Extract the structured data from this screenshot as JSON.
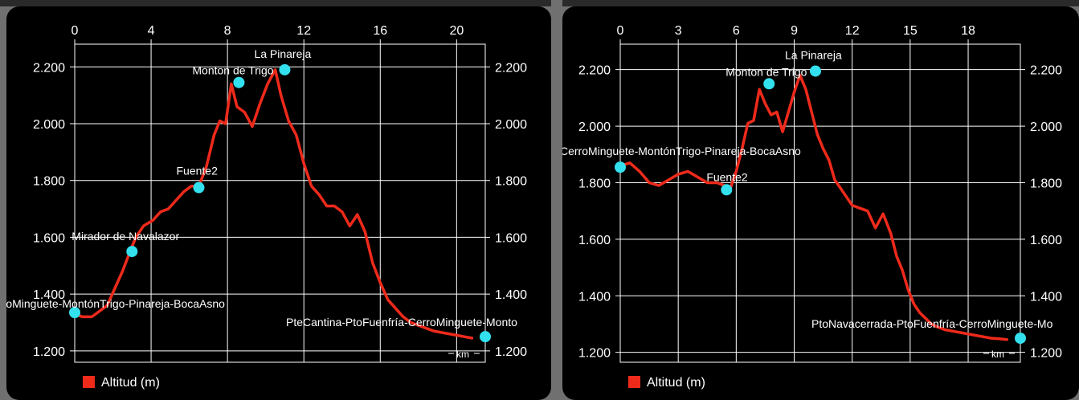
{
  "chart_data": [
    {
      "type": "line",
      "xlabel": "km",
      "x_ticks": [
        0,
        4,
        8,
        12,
        16,
        20
      ],
      "xlim": [
        0,
        21.5
      ],
      "y_ticks": [
        1200,
        1400,
        1600,
        1800,
        2000,
        2200
      ],
      "y_tick_labels": [
        "1.200",
        "1.400",
        "1.600",
        "1.800",
        "2.000",
        "2.200"
      ],
      "ylim": [
        1160,
        2280
      ],
      "legend": "Altitud (m)",
      "legend_position": "bottom-left",
      "grid": true,
      "line_color": "#ee2a1b",
      "marker_color": "#33e0ee",
      "series": [
        {
          "name": "Altitud (m)",
          "x": [
            0,
            0.4,
            0.9,
            1.3,
            1.7,
            2.1,
            2.5,
            2.9,
            3.2,
            3.6,
            4.1,
            4.5,
            4.9,
            5.3,
            5.7,
            6.1,
            6.5,
            6.9,
            7.3,
            7.6,
            7.9,
            8.2,
            8.5,
            8.9,
            9.3,
            9.7,
            10.1,
            10.5,
            10.8,
            11.2,
            11.6,
            12.0,
            12.4,
            12.8,
            13.2,
            13.6,
            14.0,
            14.4,
            14.8,
            15.2,
            15.6,
            16.0,
            16.4,
            16.8,
            17.2,
            17.6,
            18.0,
            18.4,
            18.8,
            19.2,
            19.6,
            20.0,
            20.4,
            20.8
          ],
          "y": [
            1330,
            1320,
            1320,
            1340,
            1360,
            1420,
            1480,
            1550,
            1600,
            1640,
            1660,
            1690,
            1700,
            1730,
            1760,
            1780,
            1780,
            1850,
            1960,
            2010,
            2000,
            2140,
            2060,
            2040,
            1990,
            2070,
            2140,
            2190,
            2100,
            2010,
            1960,
            1860,
            1780,
            1750,
            1710,
            1710,
            1690,
            1640,
            1680,
            1620,
            1510,
            1440,
            1380,
            1350,
            1320,
            1300,
            1290,
            1280,
            1270,
            1265,
            1260,
            1255,
            1250,
            1245
          ]
        }
      ],
      "waypoints": [
        {
          "label": "rroMinguete-MontónTrigo-Pinareja-BocaAsno",
          "x": 0,
          "y": 1335
        },
        {
          "label": "Mirador de Navalazor",
          "x": 3.0,
          "y": 1550
        },
        {
          "label": "Fuente2",
          "x": 6.5,
          "y": 1775
        },
        {
          "label": "Monton de Trigo",
          "x": 8.6,
          "y": 2145
        },
        {
          "label": "La Pinareja",
          "x": 11.0,
          "y": 2190
        },
        {
          "label": "PteCantina-PtoFuenfría-CerroMinguete-Monto",
          "x": 21.5,
          "y": 1250
        }
      ]
    },
    {
      "type": "line",
      "xlabel": "km",
      "x_ticks": [
        0,
        3,
        6,
        9,
        12,
        15,
        18
      ],
      "xlim": [
        0,
        20.7
      ],
      "y_ticks": [
        1200,
        1400,
        1600,
        1800,
        2000,
        2200
      ],
      "y_tick_labels": [
        "1.200",
        "1.400",
        "1.600",
        "1.800",
        "2.000",
        "2.200"
      ],
      "ylim": [
        1165,
        2290
      ],
      "legend": "Altitud (m)",
      "legend_position": "bottom-left",
      "grid": true,
      "line_color": "#ee2a1b",
      "marker_color": "#33e0ee",
      "series": [
        {
          "name": "Altitud (m)",
          "x": [
            0,
            0.5,
            1.0,
            1.5,
            2.0,
            2.5,
            3.0,
            3.5,
            4.0,
            4.5,
            5.0,
            5.4,
            5.7,
            6.0,
            6.3,
            6.6,
            6.9,
            7.2,
            7.5,
            7.8,
            8.1,
            8.4,
            8.7,
            9.0,
            9.3,
            9.6,
            9.9,
            10.2,
            10.5,
            10.8,
            11.1,
            11.4,
            11.7,
            12.0,
            12.4,
            12.8,
            13.2,
            13.6,
            14.0,
            14.3,
            14.6,
            14.9,
            15.2,
            15.5,
            15.8,
            16.1,
            16.4,
            16.8,
            17.2,
            17.6,
            18.0,
            18.4,
            18.8,
            19.2,
            19.6,
            20.0
          ],
          "y": [
            1860,
            1870,
            1840,
            1800,
            1790,
            1810,
            1830,
            1840,
            1820,
            1800,
            1800,
            1790,
            1780,
            1840,
            1920,
            2010,
            2020,
            2130,
            2080,
            2040,
            2050,
            1980,
            2050,
            2120,
            2180,
            2130,
            2050,
            1970,
            1920,
            1880,
            1810,
            1780,
            1750,
            1720,
            1710,
            1700,
            1640,
            1690,
            1620,
            1540,
            1490,
            1420,
            1370,
            1340,
            1320,
            1300,
            1290,
            1280,
            1275,
            1270,
            1265,
            1260,
            1255,
            1250,
            1248,
            1245
          ]
        }
      ],
      "waypoints": [
        {
          "label": "CerroMinguete-MontónTrigo-Pinareja-BocaAsno",
          "x": 0,
          "y": 1855
        },
        {
          "label": "Fuente2",
          "x": 5.5,
          "y": 1775
        },
        {
          "label": "Monton de Trigo",
          "x": 7.7,
          "y": 2150
        },
        {
          "label": "La Pinareja",
          "x": 10.1,
          "y": 2195
        },
        {
          "label": "PtoNavacerrada-PtoFuenfría-CerroMinguete-Mo",
          "x": 20.7,
          "y": 1250
        }
      ]
    }
  ]
}
